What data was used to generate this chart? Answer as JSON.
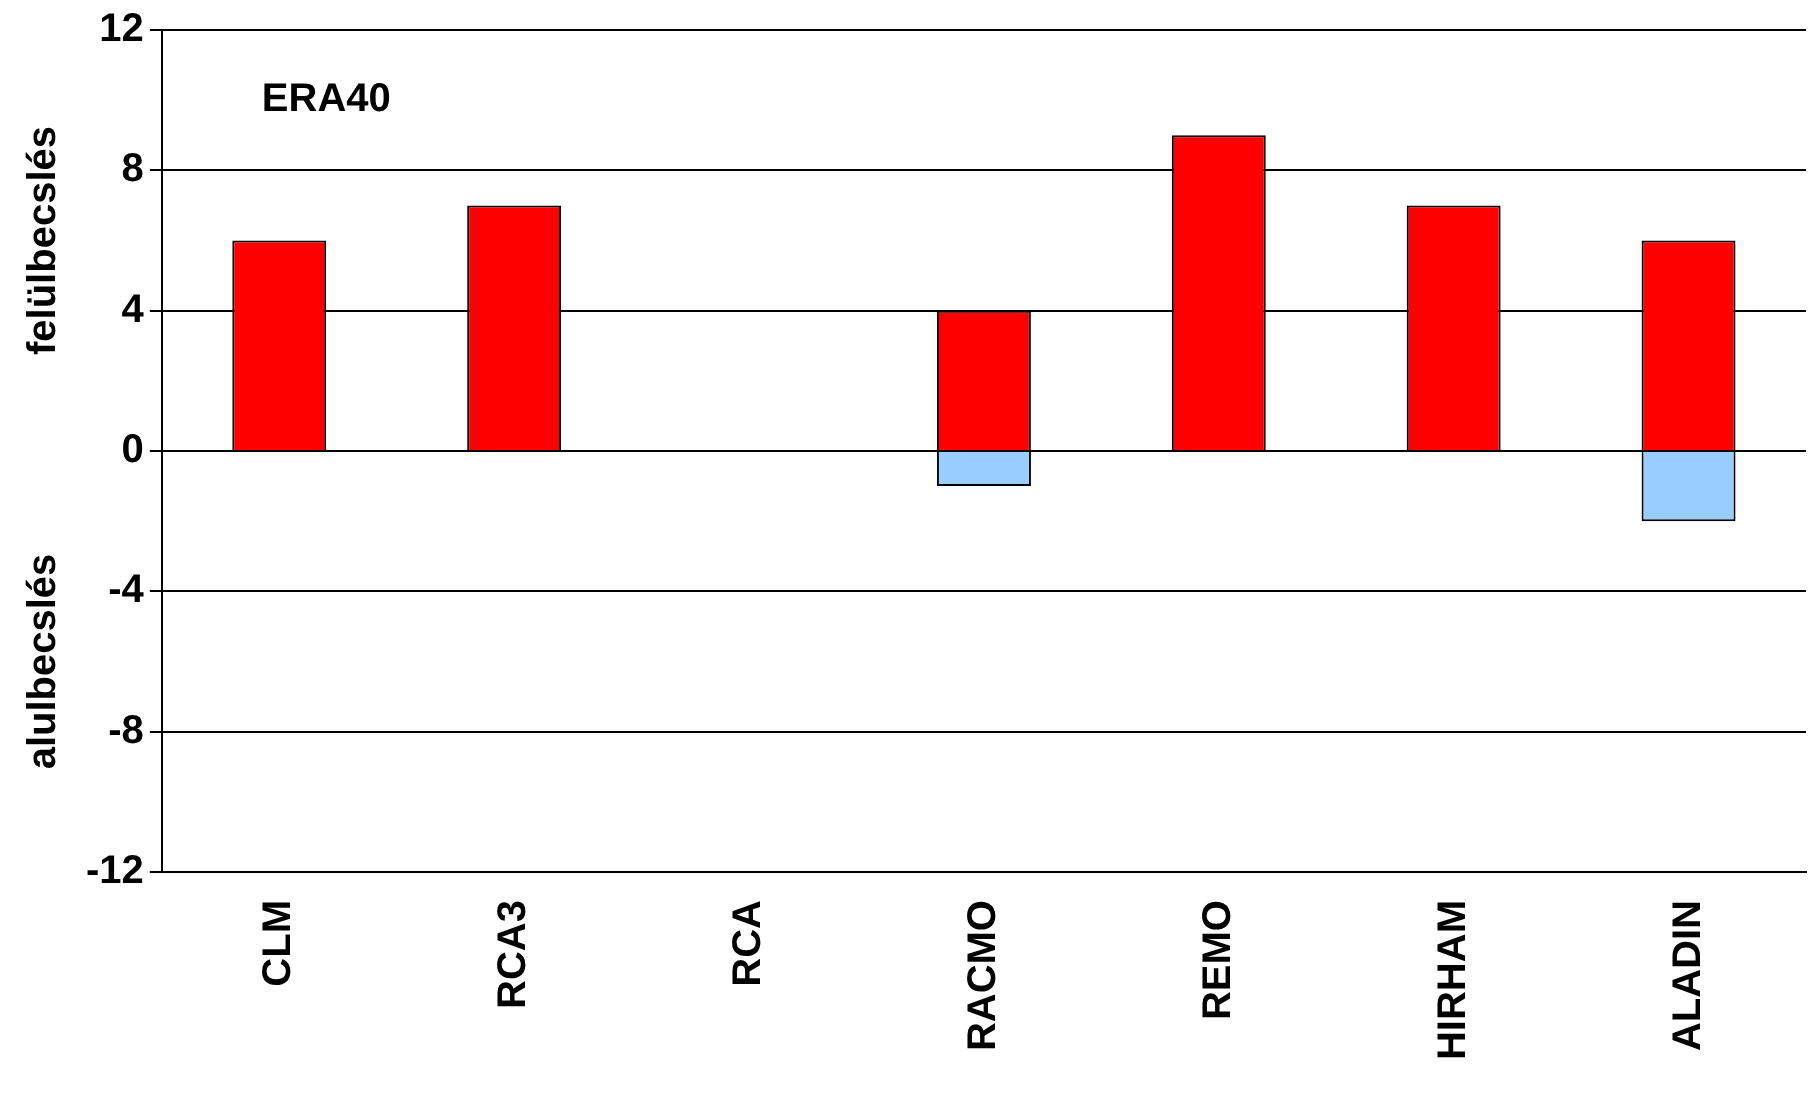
{
  "chart_data": {
    "type": "bar",
    "stacked": true,
    "ylabel": "felülbecslés",
    "annotations": [
      "ERA40",
      "alulbecslés"
    ],
    "categories": [
      "CLM",
      "RCA3",
      "RCA",
      "RACMO",
      "REMO",
      "HIRHAM",
      "ALADIN"
    ],
    "series": [
      {
        "color": "#ff0000",
        "values": [
          6,
          7,
          0,
          4,
          9,
          7,
          6
        ]
      },
      {
        "color": "#99ccff",
        "values": [
          0,
          0,
          0,
          -1,
          0,
          0,
          -2
        ]
      }
    ],
    "ylim": [
      -12,
      12
    ],
    "yticks": [
      -12,
      -8,
      -4,
      0,
      4,
      8,
      12
    ],
    "grid": "y",
    "legend": false
  }
}
